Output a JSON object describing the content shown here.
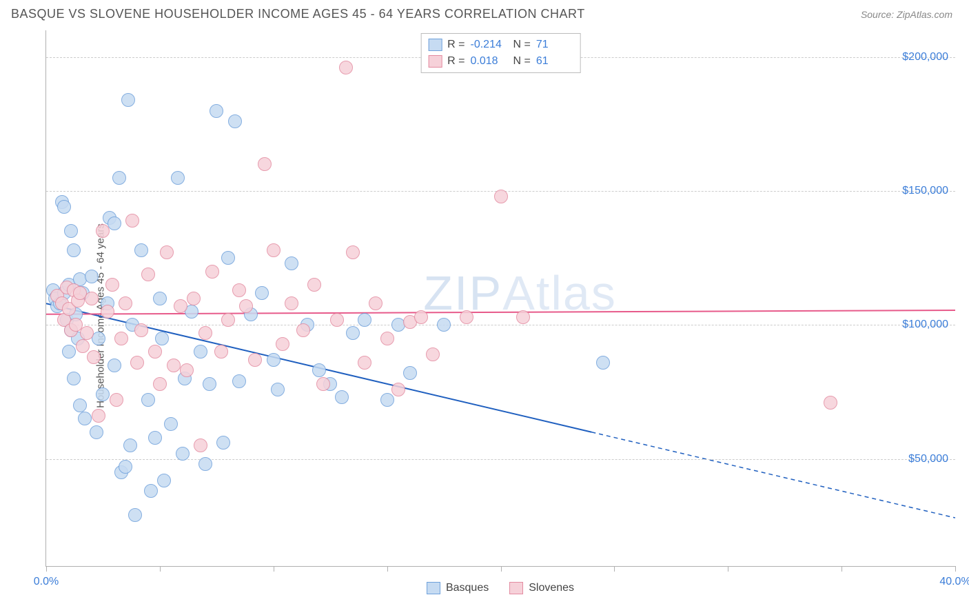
{
  "header": {
    "title": "BASQUE VS SLOVENE HOUSEHOLDER INCOME AGES 45 - 64 YEARS CORRELATION CHART",
    "source": "Source: ZipAtlas.com"
  },
  "watermark": {
    "bold": "ZIP",
    "light": "Atlas"
  },
  "chart": {
    "type": "scatter",
    "ylabel": "Householder Income Ages 45 - 64 years",
    "xlim": [
      0,
      40
    ],
    "ylim": [
      10000,
      210000
    ],
    "xtick_positions": [
      0,
      5,
      10,
      15,
      20,
      25,
      30,
      35,
      40
    ],
    "xtick_labels": {
      "0": "0.0%",
      "40": "40.0%"
    },
    "ytick_positions": [
      50000,
      100000,
      150000,
      200000
    ],
    "ytick_labels": [
      "$50,000",
      "$100,000",
      "$150,000",
      "$200,000"
    ],
    "grid_color": "#cccccc",
    "axis_color": "#b0b0b0",
    "label_color": "#3b7dd8",
    "marker_radius": 10,
    "series": [
      {
        "name": "Basques",
        "fill": "#c6dbf2",
        "stroke": "#6fa1db",
        "r": -0.214,
        "n": 71,
        "reg": {
          "x1": 0,
          "y1": 108000,
          "x2_solid": 24,
          "y2_solid": 60000,
          "x2": 40,
          "y2": 28000,
          "color": "#1f5fbf",
          "width": 2
        },
        "points": [
          [
            0.3,
            113000
          ],
          [
            0.4,
            110000
          ],
          [
            0.5,
            107000
          ],
          [
            0.6,
            108000
          ],
          [
            0.7,
            146000
          ],
          [
            0.8,
            112000
          ],
          [
            0.8,
            144000
          ],
          [
            0.9,
            102000
          ],
          [
            1.0,
            115000
          ],
          [
            1.0,
            90000
          ],
          [
            1.1,
            98000
          ],
          [
            1.1,
            135000
          ],
          [
            1.2,
            128000
          ],
          [
            1.2,
            80000
          ],
          [
            1.3,
            104000
          ],
          [
            1.4,
            95000
          ],
          [
            1.5,
            70000
          ],
          [
            1.5,
            117000
          ],
          [
            1.6,
            112000
          ],
          [
            1.7,
            65000
          ],
          [
            2.0,
            118000
          ],
          [
            2.2,
            60000
          ],
          [
            2.3,
            95000
          ],
          [
            2.5,
            74000
          ],
          [
            2.7,
            108000
          ],
          [
            2.8,
            140000
          ],
          [
            3.0,
            85000
          ],
          [
            3.0,
            138000
          ],
          [
            3.2,
            155000
          ],
          [
            3.3,
            45000
          ],
          [
            3.5,
            47000
          ],
          [
            3.6,
            184000
          ],
          [
            3.7,
            55000
          ],
          [
            3.8,
            100000
          ],
          [
            3.9,
            29000
          ],
          [
            4.2,
            128000
          ],
          [
            4.5,
            72000
          ],
          [
            4.6,
            38000
          ],
          [
            4.8,
            58000
          ],
          [
            5.0,
            110000
          ],
          [
            5.1,
            95000
          ],
          [
            5.2,
            42000
          ],
          [
            5.5,
            63000
          ],
          [
            5.8,
            155000
          ],
          [
            6.0,
            52000
          ],
          [
            6.1,
            80000
          ],
          [
            6.4,
            105000
          ],
          [
            6.8,
            90000
          ],
          [
            7.0,
            48000
          ],
          [
            7.2,
            78000
          ],
          [
            7.5,
            180000
          ],
          [
            7.8,
            56000
          ],
          [
            8.0,
            125000
          ],
          [
            8.3,
            176000
          ],
          [
            8.5,
            79000
          ],
          [
            9.0,
            104000
          ],
          [
            9.5,
            112000
          ],
          [
            10.0,
            87000
          ],
          [
            10.2,
            76000
          ],
          [
            10.8,
            123000
          ],
          [
            11.5,
            100000
          ],
          [
            12.0,
            83000
          ],
          [
            12.5,
            78000
          ],
          [
            13.0,
            73000
          ],
          [
            13.5,
            97000
          ],
          [
            14.0,
            102000
          ],
          [
            15.0,
            72000
          ],
          [
            15.5,
            100000
          ],
          [
            16.0,
            82000
          ],
          [
            17.5,
            100000
          ],
          [
            24.5,
            86000
          ]
        ]
      },
      {
        "name": "Slovenes",
        "fill": "#f6d1d9",
        "stroke": "#e38ba0",
        "r": 0.018,
        "n": 61,
        "reg": {
          "x1": 0,
          "y1": 104000,
          "x2_solid": 40,
          "y2_solid": 105500,
          "x2": 40,
          "y2": 105500,
          "color": "#e75a8a",
          "width": 2
        },
        "points": [
          [
            0.5,
            111000
          ],
          [
            0.7,
            108000
          ],
          [
            0.8,
            102000
          ],
          [
            0.9,
            114000
          ],
          [
            1.0,
            106000
          ],
          [
            1.1,
            98000
          ],
          [
            1.2,
            113000
          ],
          [
            1.3,
            100000
          ],
          [
            1.4,
            109000
          ],
          [
            1.5,
            112000
          ],
          [
            1.6,
            92000
          ],
          [
            1.8,
            97000
          ],
          [
            2.0,
            110000
          ],
          [
            2.1,
            88000
          ],
          [
            2.3,
            66000
          ],
          [
            2.5,
            135000
          ],
          [
            2.7,
            105000
          ],
          [
            2.9,
            115000
          ],
          [
            3.1,
            72000
          ],
          [
            3.3,
            95000
          ],
          [
            3.5,
            108000
          ],
          [
            3.8,
            139000
          ],
          [
            4.0,
            86000
          ],
          [
            4.2,
            98000
          ],
          [
            4.5,
            119000
          ],
          [
            4.8,
            90000
          ],
          [
            5.0,
            78000
          ],
          [
            5.3,
            127000
          ],
          [
            5.6,
            85000
          ],
          [
            5.9,
            107000
          ],
          [
            6.2,
            83000
          ],
          [
            6.5,
            110000
          ],
          [
            6.8,
            55000
          ],
          [
            7.0,
            97000
          ],
          [
            7.3,
            120000
          ],
          [
            7.7,
            90000
          ],
          [
            8.0,
            102000
          ],
          [
            8.5,
            113000
          ],
          [
            8.8,
            107000
          ],
          [
            9.2,
            87000
          ],
          [
            9.6,
            160000
          ],
          [
            10.0,
            128000
          ],
          [
            10.4,
            93000
          ],
          [
            10.8,
            108000
          ],
          [
            11.3,
            98000
          ],
          [
            11.8,
            115000
          ],
          [
            12.2,
            78000
          ],
          [
            12.8,
            102000
          ],
          [
            13.2,
            196000
          ],
          [
            13.5,
            127000
          ],
          [
            14.0,
            86000
          ],
          [
            14.5,
            108000
          ],
          [
            15.0,
            95000
          ],
          [
            15.5,
            76000
          ],
          [
            16.0,
            101000
          ],
          [
            16.5,
            103000
          ],
          [
            17.0,
            89000
          ],
          [
            18.5,
            103000
          ],
          [
            20.0,
            148000
          ],
          [
            21.0,
            103000
          ],
          [
            34.5,
            71000
          ]
        ]
      }
    ],
    "legend_top_labels": {
      "R": "R =",
      "N": "N ="
    },
    "legend_bottom": [
      "Basques",
      "Slovenes"
    ]
  }
}
